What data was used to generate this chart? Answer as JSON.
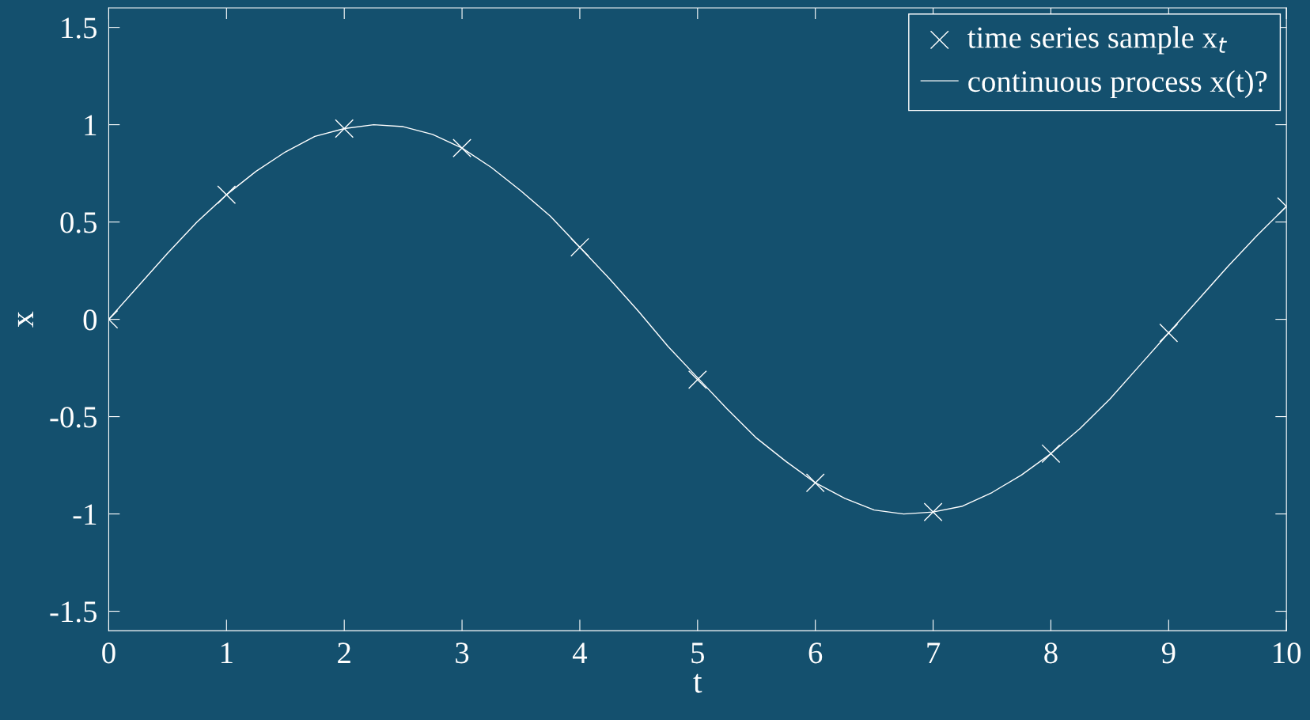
{
  "chart_data": {
    "type": "line",
    "xlabel": "t",
    "ylabel": "x",
    "xlim": [
      0,
      10
    ],
    "ylim": [
      -1.6,
      1.6
    ],
    "xticks": [
      0,
      1,
      2,
      3,
      4,
      5,
      6,
      7,
      8,
      9,
      10
    ],
    "yticks": [
      -1.5,
      -1,
      -0.5,
      0,
      0.5,
      1,
      1.5
    ],
    "grid": false,
    "legend": "top right",
    "series": [
      {
        "name": "time series sample x$_{t}$",
        "type": "scatter",
        "marker": "cross",
        "color": "#ffffff",
        "x": [
          0,
          1,
          2,
          3,
          4,
          5,
          6,
          7,
          8,
          9,
          10
        ],
        "values": [
          0,
          0.64,
          0.98,
          0.88,
          0.37,
          -0.31,
          -0.84,
          -0.99,
          -0.69,
          -0.07,
          0.58
        ]
      },
      {
        "name": "continuous process x(t)?",
        "line_style": "solid",
        "color": "#ffffff",
        "x": [
          0,
          0.25,
          0.5,
          0.75,
          1,
          1.25,
          1.5,
          1.75,
          2,
          2.25,
          2.5,
          2.75,
          3,
          3.25,
          3.5,
          3.75,
          4,
          4.25,
          4.5,
          4.75,
          5,
          5.25,
          5.5,
          5.75,
          6,
          6.25,
          6.5,
          6.75,
          7,
          7.25,
          7.5,
          7.75,
          8,
          8.25,
          8.5,
          8.75,
          9,
          9.25,
          9.5,
          9.75,
          10
        ],
        "values": [
          0,
          0.17,
          0.34,
          0.5,
          0.64,
          0.76,
          0.86,
          0.94,
          0.98,
          1.0,
          0.99,
          0.95,
          0.88,
          0.78,
          0.66,
          0.53,
          0.37,
          0.21,
          0.04,
          -0.14,
          -0.3,
          -0.46,
          -0.61,
          -0.73,
          -0.84,
          -0.92,
          -0.98,
          -1.0,
          -0.99,
          -0.96,
          -0.89,
          -0.8,
          -0.69,
          -0.56,
          -0.41,
          -0.24,
          -0.07,
          0.1,
          0.27,
          0.43,
          0.58
        ]
      }
    ]
  }
}
